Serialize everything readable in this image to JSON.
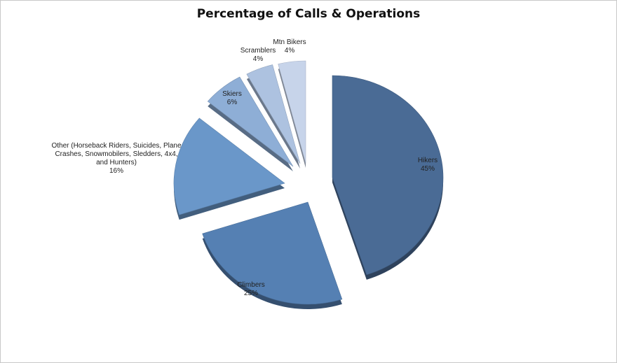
{
  "chart_data": {
    "type": "pie",
    "title": "Percentage of Calls & Operations",
    "slices": [
      {
        "label": "Hikers",
        "percent_label": "45%",
        "value": 45,
        "color": "#4a6b95"
      },
      {
        "label": "Climbers",
        "percent_label": "25%",
        "value": 25,
        "color": "#5580b3"
      },
      {
        "label": "Other (Horseback Riders, Suicides, Plane Crashes, Snowmobilers, Sledders, 4x4, and Hunters)",
        "percent_label": "16%",
        "value": 16,
        "color": "#6a97c9"
      },
      {
        "label": "Skiers",
        "percent_label": "6%",
        "value": 6,
        "color": "#8eaed6"
      },
      {
        "label": "Scramblers",
        "percent_label": "4%",
        "value": 4,
        "color": "#adc2e0"
      },
      {
        "label": "Mtn Bikers",
        "percent_label": "4%",
        "value": 4,
        "color": "#c7d4ea"
      }
    ],
    "legend": "none",
    "style": "3d-exploded"
  }
}
